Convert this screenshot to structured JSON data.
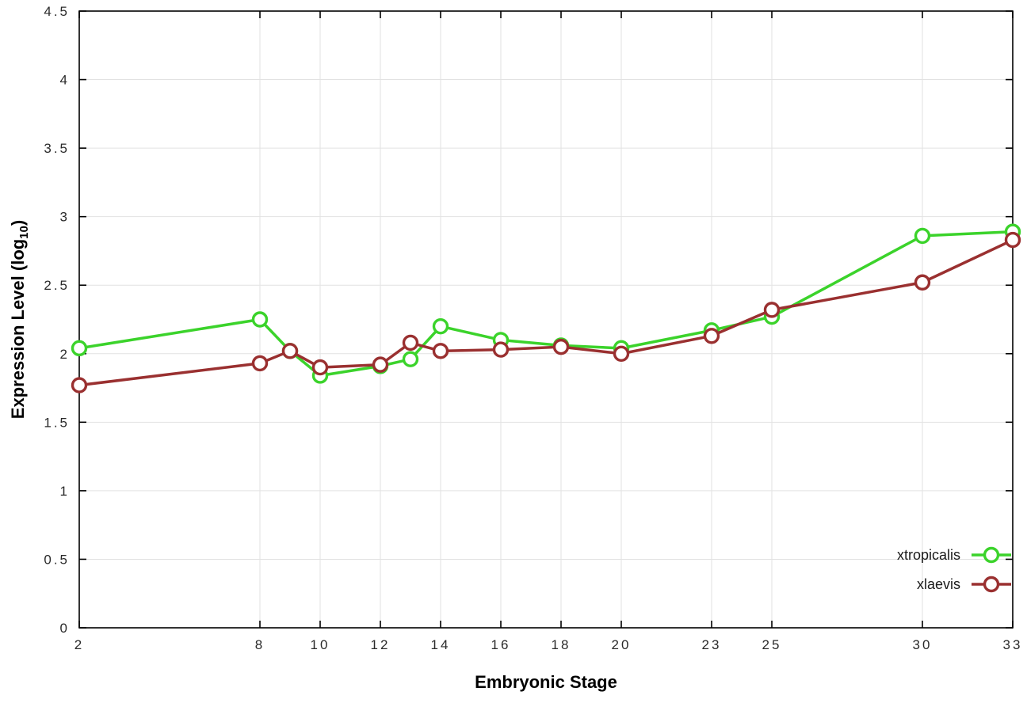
{
  "chart_data": {
    "type": "line",
    "title": "",
    "xlabel": "Embryonic Stage",
    "ylabel": "Expression Level (log10)",
    "ylabel_prefix": "Expression Level (log",
    "ylabel_subscript": "10",
    "ylabel_suffix": ")",
    "x": [
      2,
      8,
      9,
      10,
      12,
      13,
      14,
      16,
      18,
      20,
      23,
      25,
      30,
      33
    ],
    "xlim": [
      2,
      33
    ],
    "ylim": [
      0,
      4.5
    ],
    "xticks": [
      2,
      8,
      10,
      12,
      14,
      16,
      18,
      20,
      23,
      25,
      30,
      33
    ],
    "yticks": [
      0,
      0.5,
      1,
      1.5,
      2,
      2.5,
      3,
      3.5,
      4,
      4.5
    ],
    "ytick_labels": [
      "0",
      "0.5",
      "1",
      "1.5",
      "2",
      "2.5",
      "3",
      "3.5",
      "4",
      "4.5"
    ],
    "grid": true,
    "legend_position": "bottom-right",
    "marker": "open-circle",
    "series": [
      {
        "name": "xtropicalis",
        "color": "#3bd32b",
        "values": [
          2.04,
          2.25,
          2.02,
          1.84,
          1.91,
          1.96,
          2.2,
          2.1,
          2.06,
          2.04,
          2.17,
          2.27,
          2.86,
          2.89
        ]
      },
      {
        "name": "xlaevis",
        "color": "#9a3030",
        "values": [
          1.77,
          1.93,
          2.02,
          1.9,
          1.92,
          2.08,
          2.02,
          2.03,
          2.05,
          2.0,
          2.13,
          2.32,
          2.52,
          2.83
        ]
      }
    ]
  }
}
